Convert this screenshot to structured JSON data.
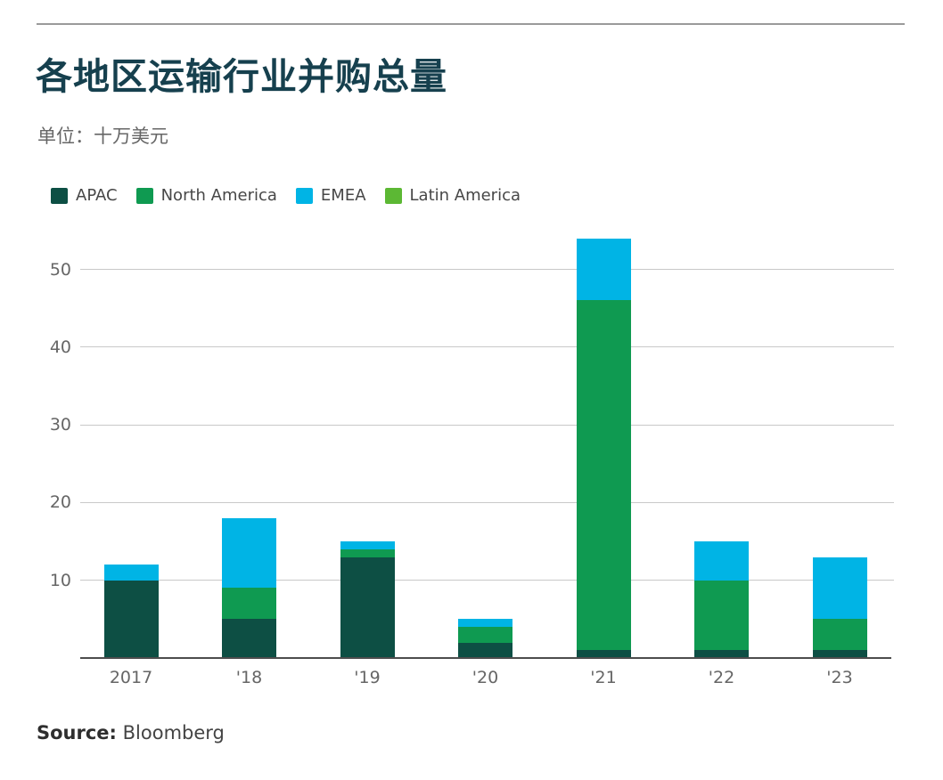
{
  "header": {
    "title": "各地区运输行业并购总量",
    "subtitle": "单位：十万美元"
  },
  "legend": [
    {
      "label": "APAC",
      "color": "#0d4f44"
    },
    {
      "label": "North America",
      "color": "#0f9a51"
    },
    {
      "label": "EMEA",
      "color": "#00b4e5"
    },
    {
      "label": "Latin America",
      "color": "#5cb834"
    }
  ],
  "chart_data": {
    "type": "bar",
    "stacked": true,
    "title": "各地区运输行业并购总量",
    "unit_label": "单位：十万美元",
    "categories": [
      "2017",
      "'18",
      "'19",
      "'20",
      "'21",
      "'22",
      "'23"
    ],
    "series": [
      {
        "name": "APAC",
        "color": "#0d4f44",
        "values": [
          10,
          5,
          13,
          2,
          1,
          1,
          1
        ]
      },
      {
        "name": "North America",
        "color": "#0f9a51",
        "values": [
          0,
          4,
          1,
          2,
          45,
          9,
          4
        ]
      },
      {
        "name": "EMEA",
        "color": "#00b4e5",
        "values": [
          2,
          9,
          1,
          1,
          8,
          5,
          8
        ]
      },
      {
        "name": "Latin America",
        "color": "#5cb834",
        "values": [
          0,
          0,
          0,
          0,
          0,
          0,
          0
        ]
      }
    ],
    "totals": [
      12,
      18,
      15,
      5,
      54,
      15,
      13
    ],
    "y_ticks": [
      10,
      20,
      30,
      40,
      50
    ],
    "ylim": [
      0,
      55
    ],
    "grid": true,
    "legend_position": "top",
    "xlabel": "",
    "ylabel": ""
  },
  "footer": {
    "source_label": "Source:",
    "source_value": "Bloomberg"
  }
}
